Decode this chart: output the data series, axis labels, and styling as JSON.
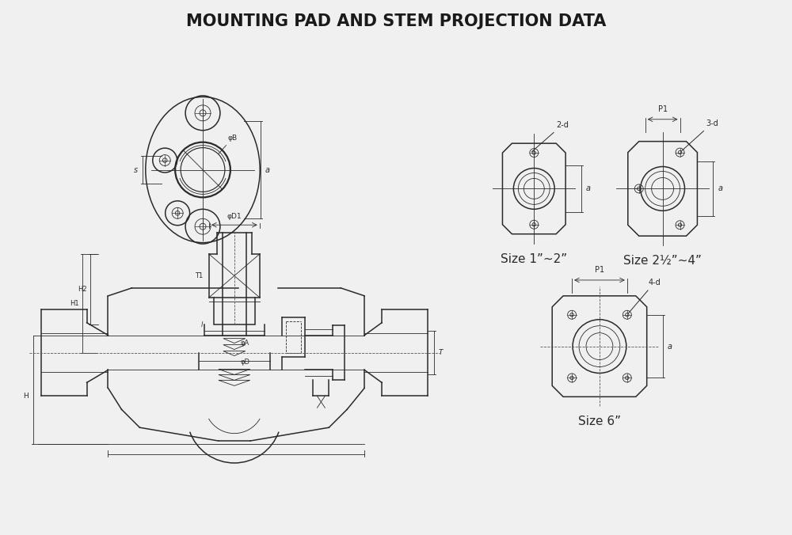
{
  "title": "MOUNTING PAD AND STEM PROJECTION DATA",
  "title_fontsize": 15,
  "title_fontweight": "bold",
  "bg_color": "#f0f0f0",
  "line_color": "#2a2a2a",
  "text_color": "#1a1a1a",
  "size_labels": [
    "Size 1”~2”",
    "Size 2½”~4”",
    "Size 6”"
  ],
  "label_2d": "2-d",
  "label_3d": "3-d",
  "label_4d": "4-d",
  "label_P1": "P1",
  "label_a": "a",
  "label_phiB": "φB",
  "label_phiD1": "φD1",
  "label_phiA": "φA",
  "label_phiD": "φD",
  "label_H2": "H2",
  "label_H1": "H1",
  "label_T1": "T1",
  "label_l": "l",
  "label_T": "T",
  "label_H": "H",
  "label_s": "s"
}
